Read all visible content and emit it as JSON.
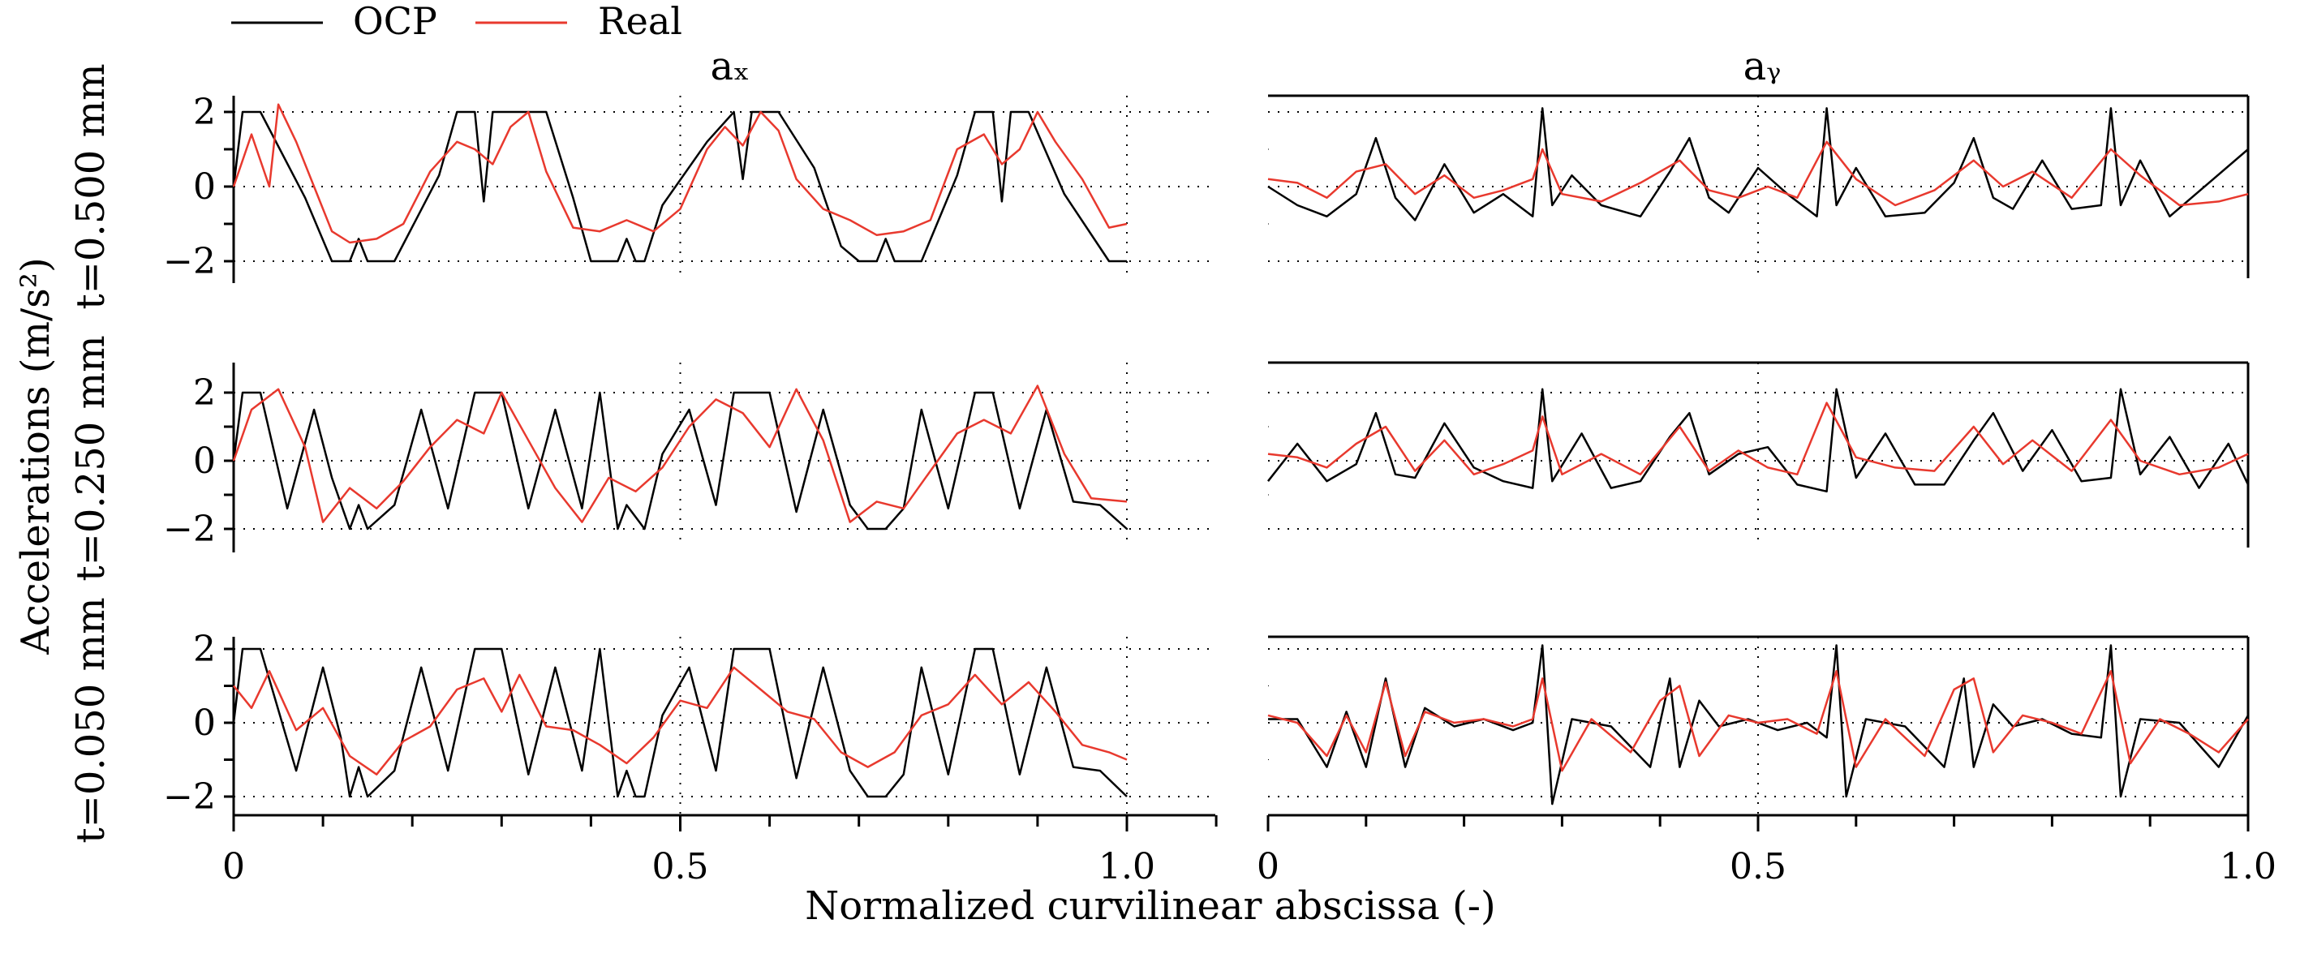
{
  "legend": [
    {
      "label": "OCP",
      "color": "#000000"
    },
    {
      "label": "Real",
      "color": "#e8392e"
    }
  ],
  "xlabel": "Normalized curvilinear abscissa (-)",
  "ylabel": "Accelerations (m/s²)",
  "column_titles": [
    "aₓ",
    "aᵧ"
  ],
  "row_labels": [
    "t=0.500 mm",
    "t=0.250 mm",
    "t=0.050 mm"
  ],
  "x_tick_labels_left": [
    "0",
    "0.5",
    "1.0"
  ],
  "x_tick_labels_right": [
    "0",
    "0.5",
    "1.0"
  ],
  "y_tick_labels": [
    "2",
    "0",
    "−2"
  ],
  "chart_data": [
    {
      "type": "line",
      "panel": "t=0.500 mm / a_x",
      "xlim": [
        0,
        1.1
      ],
      "ylim": [
        -2.5,
        2.5
      ],
      "grid": "dotted at y=-2,0,2 and x=0.5,1.0",
      "series": [
        {
          "name": "OCP",
          "x": [
            0,
            0.01,
            0.03,
            0.08,
            0.11,
            0.13,
            0.14,
            0.15,
            0.18,
            0.23,
            0.25,
            0.27,
            0.28,
            0.29,
            0.3,
            0.35,
            0.38,
            0.4,
            0.43,
            0.44,
            0.45,
            0.46,
            0.48,
            0.53,
            0.56,
            0.57,
            0.58,
            0.59,
            0.61,
            0.65,
            0.68,
            0.7,
            0.72,
            0.73,
            0.74,
            0.77,
            0.81,
            0.83,
            0.85,
            0.86,
            0.87,
            0.88,
            0.89,
            0.93,
            0.98,
            1.0
          ],
          "values": [
            0,
            2,
            2,
            -0.3,
            -2,
            -2,
            -1.4,
            -2,
            -2,
            0.3,
            2,
            2,
            -0.4,
            2,
            2,
            2,
            -0.3,
            -2,
            -2,
            -1.4,
            -2,
            -2,
            -0.5,
            1.2,
            2,
            0.2,
            2,
            2,
            2,
            0.5,
            -1.6,
            -2,
            -2,
            -1.4,
            -2,
            -2,
            0.3,
            2,
            2,
            -0.4,
            2,
            2,
            2,
            -0.2,
            -2,
            -2
          ]
        },
        {
          "name": "Real",
          "x": [
            0,
            0.02,
            0.04,
            0.05,
            0.07,
            0.09,
            0.11,
            0.13,
            0.16,
            0.19,
            0.22,
            0.25,
            0.27,
            0.29,
            0.31,
            0.33,
            0.35,
            0.38,
            0.41,
            0.44,
            0.47,
            0.5,
            0.53,
            0.55,
            0.57,
            0.59,
            0.61,
            0.63,
            0.66,
            0.69,
            0.72,
            0.75,
            0.78,
            0.81,
            0.84,
            0.86,
            0.88,
            0.9,
            0.92,
            0.95,
            0.98,
            1.0
          ],
          "values": [
            0,
            1.4,
            0,
            2.2,
            1.2,
            0,
            -1.2,
            -1.5,
            -1.4,
            -1.0,
            0.4,
            1.2,
            1.0,
            0.6,
            1.6,
            2.0,
            0.4,
            -1.1,
            -1.2,
            -0.9,
            -1.2,
            -0.6,
            1.0,
            1.6,
            1.1,
            2.0,
            1.5,
            0.2,
            -0.6,
            -0.9,
            -1.3,
            -1.2,
            -0.9,
            1.0,
            1.4,
            0.6,
            1.0,
            2.0,
            1.2,
            0.2,
            -1.1,
            -1.0
          ]
        }
      ]
    },
    {
      "type": "line",
      "panel": "t=0.500 mm / a_y",
      "xlim": [
        0,
        1.0
      ],
      "ylim": [
        -2.5,
        2.5
      ],
      "grid": "dotted at y=-2,0,2 and x=0.5",
      "series": [
        {
          "name": "OCP",
          "x": [
            0,
            0.03,
            0.06,
            0.09,
            0.11,
            0.13,
            0.15,
            0.18,
            0.21,
            0.24,
            0.27,
            0.28,
            0.29,
            0.31,
            0.34,
            0.38,
            0.41,
            0.43,
            0.45,
            0.47,
            0.5,
            0.53,
            0.56,
            0.57,
            0.58,
            0.6,
            0.63,
            0.67,
            0.7,
            0.72,
            0.74,
            0.76,
            0.79,
            0.82,
            0.85,
            0.86,
            0.87,
            0.89,
            0.92,
            0.96,
            1.0
          ],
          "values": [
            0,
            -0.5,
            -0.8,
            -0.2,
            1.3,
            -0.3,
            -0.9,
            0.6,
            -0.7,
            -0.2,
            -0.8,
            2.1,
            -0.5,
            0.3,
            -0.5,
            -0.8,
            0.4,
            1.3,
            -0.3,
            -0.7,
            0.5,
            -0.2,
            -0.8,
            2.1,
            -0.5,
            0.5,
            -0.8,
            -0.7,
            0.1,
            1.3,
            -0.3,
            -0.6,
            0.7,
            -0.6,
            -0.5,
            2.1,
            -0.5,
            0.7,
            -0.8,
            0.1,
            1.0
          ]
        },
        {
          "name": "Real",
          "x": [
            0,
            0.03,
            0.06,
            0.09,
            0.12,
            0.15,
            0.18,
            0.21,
            0.24,
            0.27,
            0.28,
            0.3,
            0.34,
            0.38,
            0.42,
            0.45,
            0.48,
            0.51,
            0.54,
            0.57,
            0.6,
            0.64,
            0.68,
            0.72,
            0.75,
            0.78,
            0.82,
            0.86,
            0.89,
            0.93,
            0.97,
            1.0
          ],
          "values": [
            0.2,
            0.1,
            -0.3,
            0.4,
            0.6,
            -0.2,
            0.3,
            -0.3,
            -0.1,
            0.2,
            1.0,
            -0.2,
            -0.4,
            0.1,
            0.7,
            -0.1,
            -0.3,
            0.0,
            -0.3,
            1.2,
            0.2,
            -0.5,
            -0.1,
            0.7,
            0.0,
            0.4,
            -0.3,
            1.0,
            0.3,
            -0.5,
            -0.4,
            -0.2
          ]
        }
      ]
    },
    {
      "type": "line",
      "panel": "t=0.250 mm / a_x",
      "xlim": [
        0,
        1.1
      ],
      "ylim": [
        -2.5,
        2.5
      ],
      "grid": "dotted at y=-2,0,2 and x=0.5,1.0",
      "series": [
        {
          "name": "OCP",
          "x": [
            0,
            0.01,
            0.03,
            0.06,
            0.09,
            0.11,
            0.13,
            0.14,
            0.15,
            0.18,
            0.21,
            0.24,
            0.27,
            0.29,
            0.3,
            0.33,
            0.36,
            0.39,
            0.41,
            0.43,
            0.44,
            0.46,
            0.48,
            0.51,
            0.54,
            0.56,
            0.58,
            0.6,
            0.63,
            0.66,
            0.69,
            0.71,
            0.73,
            0.75,
            0.77,
            0.8,
            0.83,
            0.85,
            0.88,
            0.91,
            0.94,
            0.97,
            1.0
          ],
          "values": [
            0,
            2,
            2,
            -1.4,
            1.5,
            -0.5,
            -2,
            -1.3,
            -2,
            -1.3,
            1.5,
            -1.4,
            2,
            2,
            2,
            -1.4,
            1.5,
            -1.4,
            2,
            -2,
            -1.3,
            -2,
            0.2,
            1.5,
            -1.3,
            2,
            2,
            2,
            -1.5,
            1.5,
            -1.3,
            -2,
            -2,
            -1.4,
            1.5,
            -1.4,
            2,
            2,
            -1.4,
            1.5,
            -1.2,
            -1.3,
            -2
          ]
        },
        {
          "name": "Real",
          "x": [
            0,
            0.02,
            0.05,
            0.08,
            0.1,
            0.13,
            0.16,
            0.19,
            0.22,
            0.25,
            0.28,
            0.3,
            0.33,
            0.36,
            0.39,
            0.42,
            0.45,
            0.48,
            0.51,
            0.54,
            0.57,
            0.6,
            0.63,
            0.66,
            0.69,
            0.72,
            0.75,
            0.78,
            0.81,
            0.84,
            0.87,
            0.9,
            0.93,
            0.96,
            1.0
          ],
          "values": [
            0,
            1.5,
            2.1,
            0.4,
            -1.8,
            -0.8,
            -1.4,
            -0.6,
            0.4,
            1.2,
            0.8,
            2.0,
            0.6,
            -0.8,
            -1.8,
            -0.5,
            -0.9,
            -0.2,
            1.0,
            1.8,
            1.4,
            0.4,
            2.1,
            0.6,
            -1.8,
            -1.2,
            -1.4,
            -0.3,
            0.8,
            1.2,
            0.8,
            2.2,
            0.2,
            -1.1,
            -1.2
          ]
        }
      ]
    },
    {
      "type": "line",
      "panel": "t=0.250 mm / a_y",
      "xlim": [
        0,
        1.0
      ],
      "ylim": [
        -2.5,
        2.5
      ],
      "grid": "dotted at y=-2,0,2 and x=0.5",
      "series": [
        {
          "name": "OCP",
          "x": [
            0,
            0.03,
            0.06,
            0.09,
            0.11,
            0.13,
            0.15,
            0.18,
            0.21,
            0.24,
            0.27,
            0.28,
            0.29,
            0.32,
            0.35,
            0.38,
            0.41,
            0.43,
            0.45,
            0.48,
            0.51,
            0.54,
            0.57,
            0.58,
            0.6,
            0.63,
            0.66,
            0.69,
            0.72,
            0.74,
            0.77,
            0.8,
            0.83,
            0.86,
            0.87,
            0.89,
            0.92,
            0.95,
            0.98,
            1.0
          ],
          "values": [
            -0.6,
            0.5,
            -0.6,
            -0.1,
            1.4,
            -0.4,
            -0.5,
            1.1,
            -0.2,
            -0.6,
            -0.8,
            2.1,
            -0.6,
            0.8,
            -0.8,
            -0.6,
            0.7,
            1.4,
            -0.4,
            0.2,
            0.4,
            -0.7,
            -0.9,
            2.1,
            -0.5,
            0.8,
            -0.7,
            -0.7,
            0.6,
            1.4,
            -0.3,
            0.9,
            -0.6,
            -0.5,
            2.1,
            -0.4,
            0.7,
            -0.8,
            0.5,
            -0.7
          ]
        },
        {
          "name": "Real",
          "x": [
            0,
            0.03,
            0.06,
            0.09,
            0.12,
            0.15,
            0.18,
            0.21,
            0.24,
            0.27,
            0.28,
            0.3,
            0.34,
            0.38,
            0.42,
            0.45,
            0.48,
            0.51,
            0.54,
            0.57,
            0.6,
            0.64,
            0.68,
            0.72,
            0.75,
            0.78,
            0.82,
            0.86,
            0.89,
            0.93,
            0.97,
            1.0
          ],
          "values": [
            0.2,
            0.1,
            -0.2,
            0.5,
            1.0,
            -0.3,
            0.6,
            -0.4,
            -0.1,
            0.3,
            1.3,
            -0.4,
            0.2,
            -0.4,
            1.0,
            -0.3,
            0.3,
            -0.2,
            -0.4,
            1.7,
            0.1,
            -0.2,
            -0.3,
            1.0,
            -0.1,
            0.6,
            -0.3,
            1.2,
            0.0,
            -0.4,
            -0.2,
            0.2
          ]
        }
      ]
    },
    {
      "type": "line",
      "panel": "t=0.050 mm / a_x",
      "xlim": [
        0,
        1.1
      ],
      "ylim": [
        -2.5,
        2.5
      ],
      "grid": "dotted at y=-2,0,2 and x=0.5,1.0",
      "series": [
        {
          "name": "OCP",
          "x": [
            0,
            0.01,
            0.03,
            0.07,
            0.1,
            0.12,
            0.13,
            0.14,
            0.15,
            0.18,
            0.21,
            0.24,
            0.27,
            0.29,
            0.3,
            0.33,
            0.36,
            0.39,
            0.41,
            0.43,
            0.44,
            0.45,
            0.46,
            0.48,
            0.51,
            0.54,
            0.56,
            0.58,
            0.6,
            0.63,
            0.66,
            0.69,
            0.71,
            0.73,
            0.75,
            0.77,
            0.8,
            0.83,
            0.85,
            0.88,
            0.91,
            0.94,
            0.97,
            1.0
          ],
          "values": [
            0,
            2,
            2,
            -1.3,
            1.5,
            -0.4,
            -2,
            -1.2,
            -2,
            -1.3,
            1.5,
            -1.3,
            2,
            2,
            2,
            -1.4,
            1.5,
            -1.3,
            2,
            -2,
            -1.3,
            -2,
            -2,
            0.2,
            1.5,
            -1.3,
            2,
            2,
            2,
            -1.5,
            1.5,
            -1.3,
            -2,
            -2,
            -1.4,
            1.5,
            -1.4,
            2,
            2,
            -1.4,
            1.5,
            -1.2,
            -1.3,
            -2
          ]
        },
        {
          "name": "Real",
          "x": [
            0,
            0.02,
            0.04,
            0.07,
            0.1,
            0.13,
            0.16,
            0.19,
            0.22,
            0.25,
            0.28,
            0.3,
            0.32,
            0.35,
            0.38,
            0.41,
            0.44,
            0.47,
            0.5,
            0.53,
            0.56,
            0.59,
            0.62,
            0.65,
            0.68,
            0.71,
            0.74,
            0.77,
            0.8,
            0.83,
            0.86,
            0.89,
            0.92,
            0.95,
            0.98,
            1.0
          ],
          "values": [
            1.0,
            0.4,
            1.4,
            -0.2,
            0.4,
            -0.9,
            -1.4,
            -0.5,
            -0.1,
            0.9,
            1.2,
            0.3,
            1.3,
            -0.1,
            -0.2,
            -0.6,
            -1.1,
            -0.4,
            0.6,
            0.4,
            1.5,
            0.9,
            0.3,
            0.1,
            -0.8,
            -1.2,
            -0.8,
            0.2,
            0.5,
            1.3,
            0.5,
            1.1,
            0.3,
            -0.6,
            -0.8,
            -1.0
          ]
        }
      ]
    },
    {
      "type": "line",
      "panel": "t=0.050 mm / a_y",
      "xlim": [
        0,
        1.0
      ],
      "ylim": [
        -2.5,
        2.5
      ],
      "grid": "dotted at y=-2,0,2 and x=0.5",
      "series": [
        {
          "name": "OCP",
          "x": [
            0,
            0.03,
            0.06,
            0.08,
            0.1,
            0.12,
            0.14,
            0.16,
            0.19,
            0.22,
            0.25,
            0.27,
            0.28,
            0.29,
            0.31,
            0.35,
            0.39,
            0.41,
            0.42,
            0.44,
            0.46,
            0.49,
            0.52,
            0.55,
            0.57,
            0.58,
            0.59,
            0.61,
            0.65,
            0.69,
            0.71,
            0.72,
            0.74,
            0.76,
            0.79,
            0.82,
            0.85,
            0.86,
            0.87,
            0.89,
            0.93,
            0.97,
            1.0
          ],
          "values": [
            0.1,
            0.1,
            -1.2,
            0.3,
            -1.2,
            1.2,
            -1.2,
            0.4,
            -0.1,
            0.1,
            -0.2,
            0.0,
            2.1,
            -2.2,
            0.1,
            -0.1,
            -1.2,
            1.2,
            -1.2,
            0.6,
            -0.1,
            0.1,
            -0.2,
            0.0,
            -0.4,
            2.1,
            -2.0,
            0.1,
            -0.1,
            -1.2,
            1.2,
            -1.2,
            0.5,
            -0.1,
            0.1,
            -0.3,
            -0.4,
            2.1,
            -2.0,
            0.1,
            0.0,
            -1.2,
            0.2
          ]
        },
        {
          "name": "Real",
          "x": [
            0,
            0.03,
            0.06,
            0.08,
            0.1,
            0.12,
            0.14,
            0.16,
            0.19,
            0.22,
            0.25,
            0.27,
            0.28,
            0.3,
            0.33,
            0.37,
            0.4,
            0.42,
            0.44,
            0.47,
            0.5,
            0.53,
            0.56,
            0.58,
            0.6,
            0.63,
            0.67,
            0.7,
            0.72,
            0.74,
            0.77,
            0.8,
            0.83,
            0.86,
            0.88,
            0.91,
            0.94,
            0.97,
            1.0
          ],
          "values": [
            0.2,
            0.0,
            -0.9,
            0.2,
            -0.8,
            1.1,
            -0.9,
            0.3,
            0.0,
            0.1,
            -0.1,
            0.1,
            1.2,
            -1.3,
            0.1,
            -0.8,
            0.6,
            1.0,
            -0.9,
            0.2,
            0.0,
            0.1,
            -0.3,
            1.4,
            -1.2,
            0.1,
            -0.9,
            0.9,
            1.2,
            -0.8,
            0.2,
            0.0,
            -0.3,
            1.4,
            -1.1,
            0.1,
            -0.3,
            -0.8,
            0.1
          ]
        }
      ]
    }
  ]
}
